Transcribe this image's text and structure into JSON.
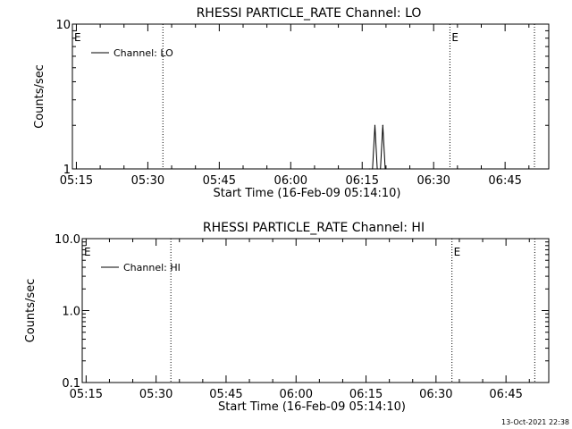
{
  "footer": {
    "timestamp": "13-Oct-2021 22:38"
  },
  "chart_data": [
    {
      "type": "line",
      "title": "RHESSI PARTICLE_RATE Channel: LO",
      "xlabel": "Start Time (16-Feb-09 05:14:10)",
      "ylabel": "Counts/sec",
      "yscale": "log",
      "ylim": [
        1,
        10
      ],
      "yticks": [
        1,
        10
      ],
      "ytick_labels": [
        "1",
        "10"
      ],
      "xlim": [
        "05:14:10",
        "06:54:10"
      ],
      "xticks": [
        "05:15",
        "05:30",
        "05:45",
        "06:00",
        "06:15",
        "06:30",
        "06:45"
      ],
      "legend": {
        "position": "top-left",
        "entries": [
          "Channel: LO"
        ]
      },
      "series": [
        {
          "name": "Channel: LO",
          "x": [
            "06:16:30",
            "06:17:10",
            "06:17:40",
            "06:18:10",
            "06:18:50",
            "06:19:20",
            "06:19:50"
          ],
          "y": [
            1,
            1,
            2,
            1,
            1,
            2,
            1
          ]
        }
      ],
      "markers": [
        {
          "time": "05:14:10",
          "label": "E"
        },
        {
          "time": "05:33:10",
          "label": ""
        },
        {
          "time": "06:33:25",
          "label": "E"
        },
        {
          "time": "06:51:10",
          "label": ""
        }
      ]
    },
    {
      "type": "line",
      "title": "RHESSI PARTICLE_RATE Channel: HI",
      "xlabel": "Start Time (16-Feb-09 05:14:10)",
      "ylabel": "Counts/sec",
      "yscale": "log",
      "ylim": [
        0.1,
        10
      ],
      "yticks": [
        0.1,
        1,
        10
      ],
      "ytick_labels": [
        "0.1",
        "1.0",
        "10.0"
      ],
      "xlim": [
        "05:14:10",
        "06:54:10"
      ],
      "xticks": [
        "05:15",
        "05:30",
        "05:45",
        "06:00",
        "06:15",
        "06:30",
        "06:45"
      ],
      "legend": {
        "position": "top-left",
        "entries": [
          "Channel: HI"
        ]
      },
      "series": [
        {
          "name": "Channel: HI",
          "x": [],
          "y": []
        }
      ],
      "markers": [
        {
          "time": "05:14:10",
          "label": "E"
        },
        {
          "time": "05:33:10",
          "label": ""
        },
        {
          "time": "06:33:25",
          "label": "E"
        },
        {
          "time": "06:51:10",
          "label": ""
        }
      ]
    }
  ]
}
